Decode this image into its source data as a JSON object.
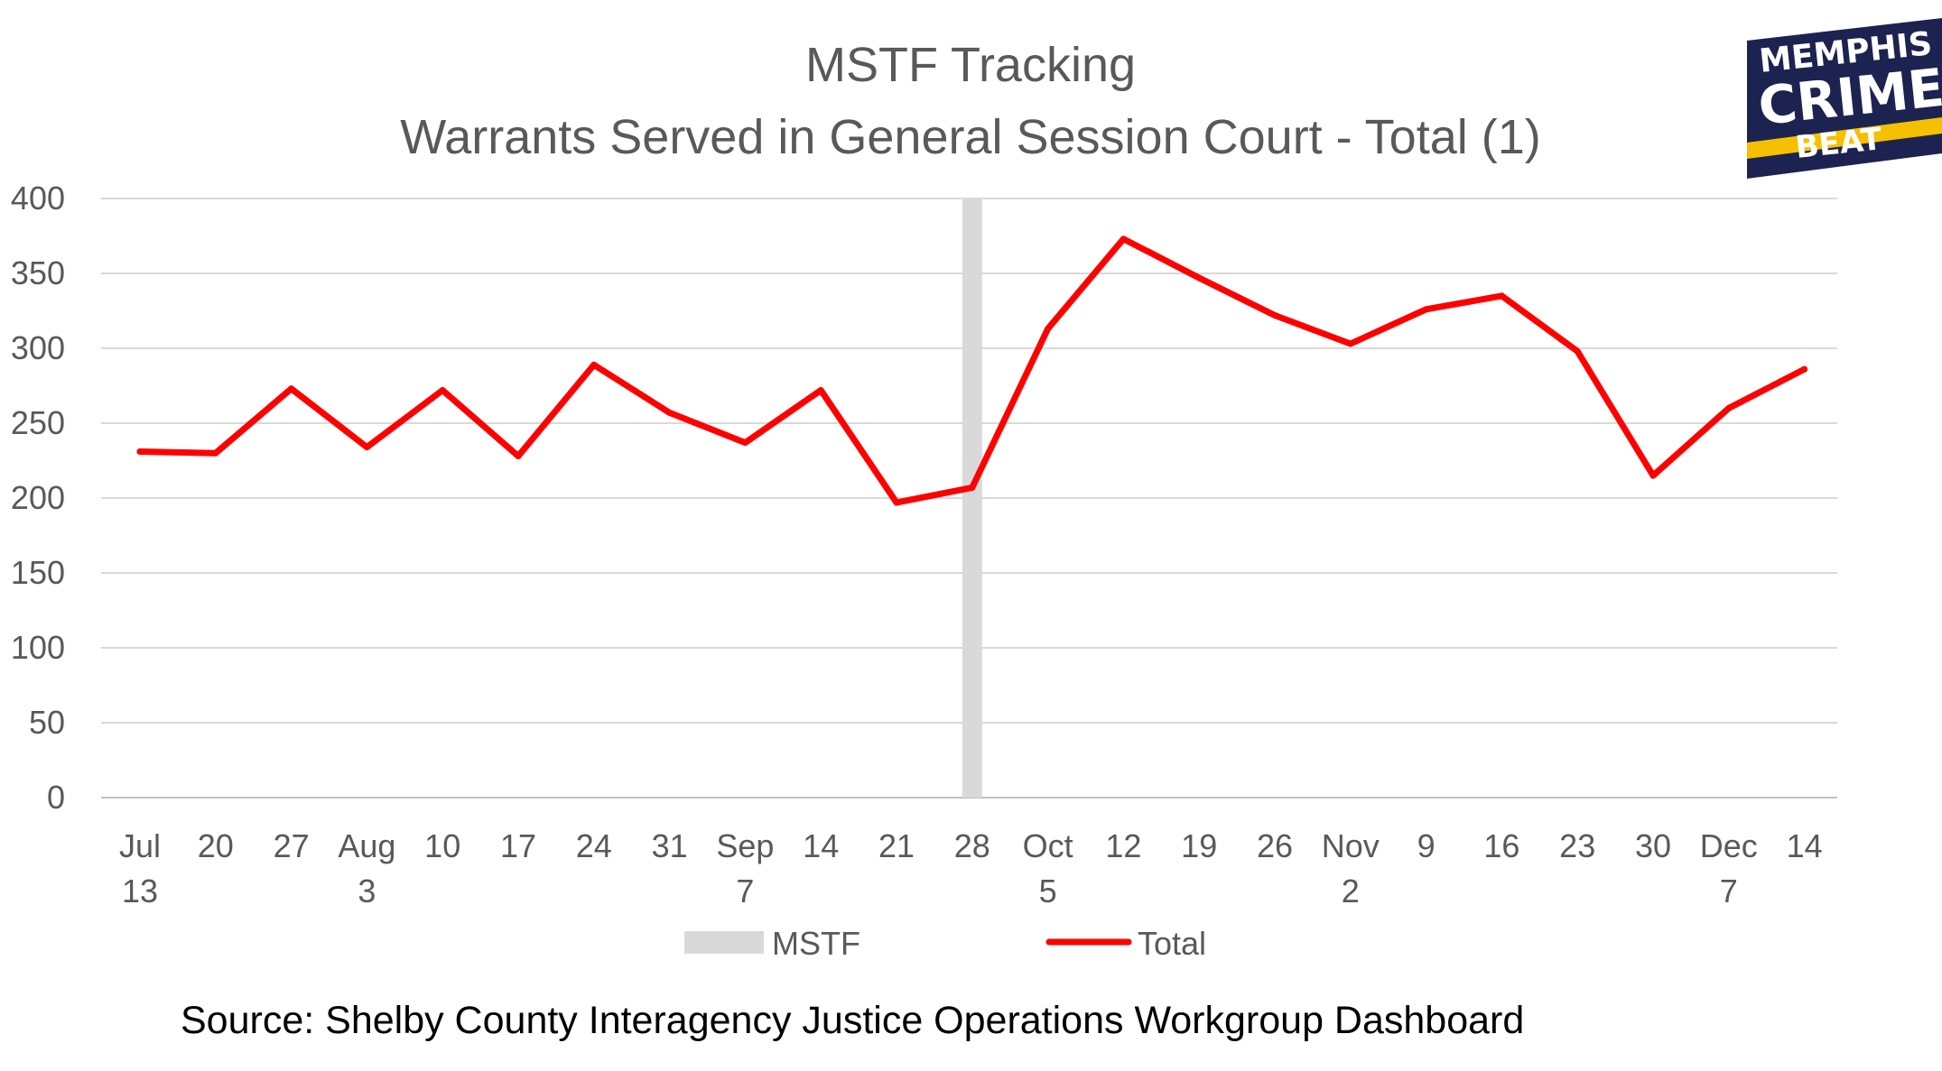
{
  "chart_data": {
    "type": "line",
    "title": "MSTF Tracking",
    "subtitle": "Warrants Served in General Session Court - Total (1)",
    "xlabel": "",
    "ylabel": "",
    "ylim": [
      0,
      400
    ],
    "y_ticks": [
      0,
      50,
      100,
      150,
      200,
      250,
      300,
      350,
      400
    ],
    "grid": true,
    "legend_position": "bottom",
    "categories": [
      [
        "Jul",
        "13"
      ],
      [
        "20"
      ],
      [
        "27"
      ],
      [
        "Aug",
        "3"
      ],
      [
        "10"
      ],
      [
        "17"
      ],
      [
        "24"
      ],
      [
        "31"
      ],
      [
        "Sep",
        "7"
      ],
      [
        "14"
      ],
      [
        "21"
      ],
      [
        "28"
      ],
      [
        "Oct",
        "5"
      ],
      [
        "12"
      ],
      [
        "19"
      ],
      [
        "26"
      ],
      [
        "Nov",
        "2"
      ],
      [
        "9"
      ],
      [
        "16"
      ],
      [
        "23"
      ],
      [
        "30"
      ],
      [
        "Dec",
        "7"
      ],
      [
        "14"
      ]
    ],
    "series": [
      {
        "name": "Total",
        "kind": "line",
        "color": "#ff0000",
        "values": [
          231,
          230,
          273,
          234,
          272,
          228,
          289,
          257,
          237,
          272,
          197,
          207,
          313,
          373,
          347,
          322,
          303,
          326,
          335,
          298,
          215,
          260,
          286
        ]
      },
      {
        "name": "MSTF",
        "kind": "marker-bar",
        "color": "#d9d9d9",
        "category_index": 11,
        "value": 400
      }
    ],
    "legend": [
      {
        "name": "MSTF",
        "color": "#d9d9d9",
        "kind": "bar"
      },
      {
        "name": "Total",
        "color": "#ff0000",
        "kind": "line"
      }
    ]
  },
  "source": "Source:  Shelby County Interagency Justice Operations Workgroup Dashboard",
  "logo": {
    "lines": [
      "MEMPHIS",
      "CRIME",
      "BEAT"
    ],
    "background_color": "#1c2350",
    "accent_color": "#f5c000"
  }
}
